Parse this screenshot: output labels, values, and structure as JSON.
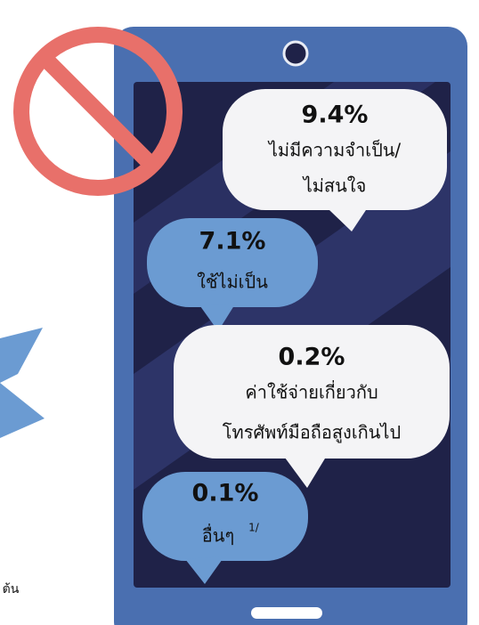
{
  "bubbles": [
    {
      "percent": "9.4%",
      "lines": [
        "ไม่มีความจำเป็น/",
        "ไม่สนใจ"
      ]
    },
    {
      "percent": "7.1%",
      "lines": [
        "ใช้ไม่เป็น"
      ]
    },
    {
      "percent": "0.2%",
      "lines": [
        "ค่าใช้จ่ายเกี่ยวกับ",
        "โทรศัพท์มือถือสูงเกินไป"
      ]
    },
    {
      "percent": "0.1%",
      "lines": [
        "อื่นๆ"
      ],
      "note": "1/"
    }
  ],
  "footer_fragment": "ต้น"
}
